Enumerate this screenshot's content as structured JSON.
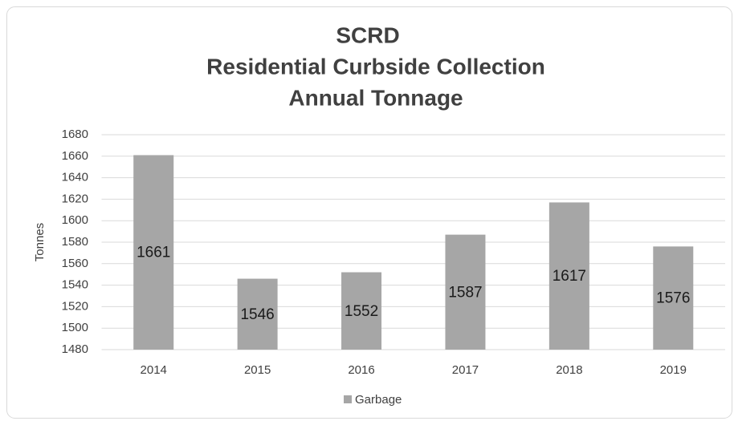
{
  "chart_data": {
    "type": "bar",
    "title": [
      "SCRD",
      "Residential Curbside Collection",
      "Annual Tonnage"
    ],
    "y_label": "Tonnes",
    "categories": [
      "2014",
      "2015",
      "2016",
      "2017",
      "2018",
      "2019"
    ],
    "series": [
      {
        "name": "Garbage",
        "color": "#a6a6a6",
        "values": [
          1661,
          1546,
          1552,
          1587,
          1617,
          1576
        ]
      }
    ],
    "ylim": [
      1480,
      1680
    ],
    "yticks": [
      1480,
      1500,
      1520,
      1540,
      1560,
      1580,
      1600,
      1620,
      1640,
      1660,
      1680
    ],
    "grid": true,
    "legend": "bottom"
  }
}
